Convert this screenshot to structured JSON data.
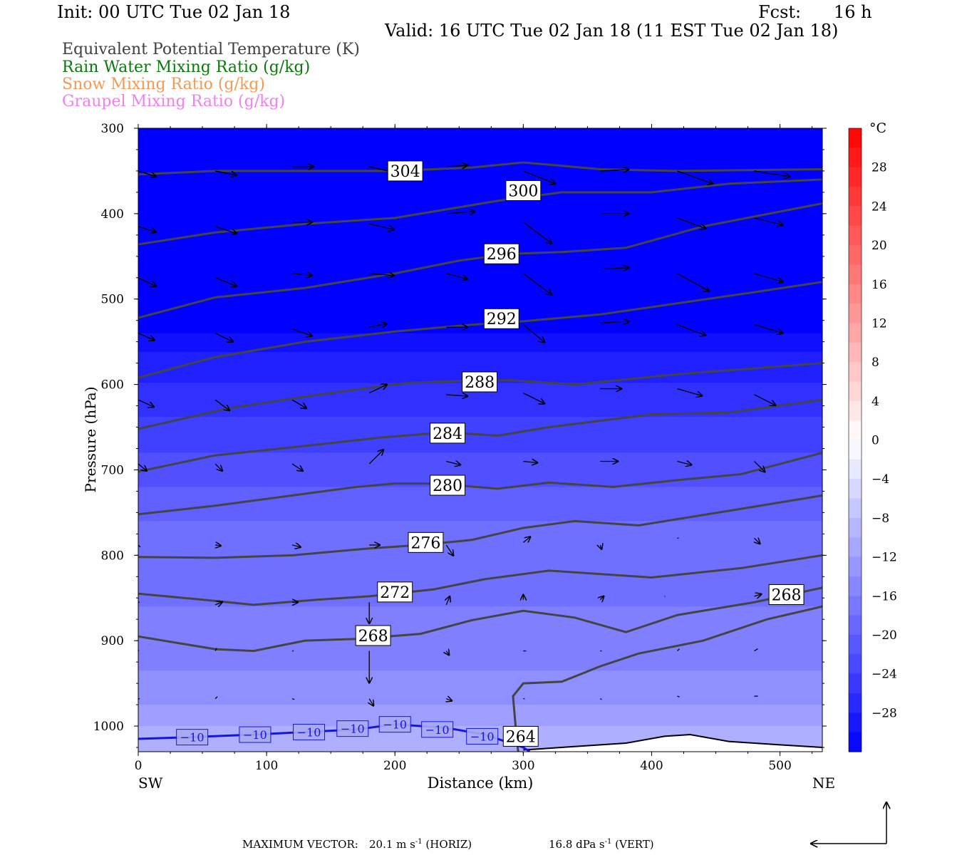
{
  "header": {
    "init": "Init: 00 UTC Tue 02 Jan 18",
    "fcst_label": "Fcst:",
    "fcst_value": "16 h",
    "valid": "Valid: 16 UTC Tue 02 Jan 18 (11 EST Tue 02 Jan 18)"
  },
  "fields": [
    {
      "label": "Equivalent Potential Temperature (K)",
      "color": "#404040"
    },
    {
      "label": "Rain Water Mixing Ratio (g/kg)",
      "color": "#0a7a0a"
    },
    {
      "label": "Snow Mixing Ratio (g/kg)",
      "color": "#f29a55"
    },
    {
      "label": "Graupel Mixing Ratio (g/kg)",
      "color": "#f080f0"
    }
  ],
  "footer": {
    "max_vector_label": "MAXIMUM VECTOR:",
    "horiz_value": "20.1 m s",
    "horiz_exp": "-1",
    "horiz_suffix": "(HORIZ)",
    "vert_value": "16.8 dPa s",
    "vert_exp": "-1",
    "vert_suffix": "(VERT)"
  },
  "chart_data": {
    "type": "cross-section",
    "title": "",
    "xlabel": "Distance (km)",
    "ylabel": "Pressure (hPa)",
    "x_ticks": [
      0,
      100,
      200,
      300,
      400,
      500
    ],
    "x_end_labels": {
      "left": "SW",
      "right": "NE"
    },
    "xlim": [
      0,
      533
    ],
    "y_ticks": [
      300,
      400,
      500,
      600,
      700,
      800,
      900,
      1000
    ],
    "ylim": [
      300,
      1030
    ],
    "colorbar": {
      "unit": "°C",
      "labels": [
        28,
        24,
        20,
        16,
        12,
        8,
        4,
        0,
        -4,
        -8,
        -12,
        -16,
        -20,
        -24,
        -28
      ],
      "range": [
        -32,
        32
      ],
      "step": 2
    },
    "theta_e_contours": [
      {
        "label": "304",
        "label_x": 208,
        "label_p": 350,
        "points": [
          [
            0,
            354
          ],
          [
            60,
            350
          ],
          [
            120,
            350
          ],
          [
            200,
            350
          ],
          [
            260,
            346
          ],
          [
            300,
            340
          ],
          [
            360,
            348
          ],
          [
            420,
            350
          ],
          [
            533,
            348
          ]
        ]
      },
      {
        "label": "300",
        "label_x": 300,
        "label_p": 373,
        "points": [
          [
            0,
            436
          ],
          [
            60,
            422
          ],
          [
            130,
            412
          ],
          [
            200,
            405
          ],
          [
            240,
            395
          ],
          [
            280,
            385
          ],
          [
            330,
            375
          ],
          [
            400,
            375
          ],
          [
            460,
            365
          ],
          [
            533,
            360
          ]
        ]
      },
      {
        "label": "296",
        "label_x": 283,
        "label_p": 447,
        "points": [
          [
            0,
            522
          ],
          [
            60,
            498
          ],
          [
            130,
            487
          ],
          [
            200,
            470
          ],
          [
            250,
            455
          ],
          [
            290,
            447
          ],
          [
            330,
            445
          ],
          [
            380,
            440
          ],
          [
            440,
            415
          ],
          [
            533,
            388
          ]
        ]
      },
      {
        "label": "292",
        "label_x": 283,
        "label_p": 523,
        "points": [
          [
            0,
            592
          ],
          [
            60,
            568
          ],
          [
            130,
            550
          ],
          [
            200,
            538
          ],
          [
            260,
            530
          ],
          [
            300,
            526
          ],
          [
            360,
            518
          ],
          [
            420,
            505
          ],
          [
            480,
            492
          ],
          [
            533,
            480
          ]
        ]
      },
      {
        "label": "288",
        "label_x": 266,
        "label_p": 597,
        "points": [
          [
            0,
            652
          ],
          [
            70,
            628
          ],
          [
            140,
            612
          ],
          [
            210,
            598
          ],
          [
            250,
            596
          ],
          [
            290,
            595
          ],
          [
            340,
            600
          ],
          [
            420,
            588
          ],
          [
            490,
            580
          ],
          [
            533,
            575
          ]
        ]
      },
      {
        "label": "284",
        "label_x": 241,
        "label_p": 657,
        "points": [
          [
            0,
            702
          ],
          [
            60,
            683
          ],
          [
            130,
            672
          ],
          [
            190,
            662
          ],
          [
            240,
            656
          ],
          [
            280,
            660
          ],
          [
            320,
            650
          ],
          [
            400,
            635
          ],
          [
            460,
            633
          ],
          [
            533,
            618
          ]
        ]
      },
      {
        "label": "280",
        "label_x": 241,
        "label_p": 718,
        "points": [
          [
            0,
            752
          ],
          [
            60,
            742
          ],
          [
            120,
            730
          ],
          [
            170,
            720
          ],
          [
            200,
            716
          ],
          [
            230,
            716
          ],
          [
            280,
            722
          ],
          [
            320,
            715
          ],
          [
            370,
            720
          ],
          [
            420,
            712
          ],
          [
            470,
            705
          ],
          [
            533,
            680
          ]
        ]
      },
      {
        "label": "276",
        "label_x": 224,
        "label_p": 785,
        "points": [
          [
            0,
            802
          ],
          [
            60,
            803
          ],
          [
            120,
            800
          ],
          [
            180,
            792
          ],
          [
            220,
            788
          ],
          [
            260,
            782
          ],
          [
            300,
            768
          ],
          [
            340,
            760
          ],
          [
            390,
            765
          ],
          [
            460,
            748
          ],
          [
            533,
            730
          ]
        ]
      },
      {
        "label": "272",
        "label_x": 200,
        "label_p": 843,
        "points": [
          [
            0,
            845
          ],
          [
            50,
            852
          ],
          [
            90,
            858
          ],
          [
            140,
            852
          ],
          [
            180,
            848
          ],
          [
            230,
            840
          ],
          [
            270,
            828
          ],
          [
            320,
            818
          ],
          [
            400,
            826
          ],
          [
            470,
            815
          ],
          [
            533,
            800
          ]
        ]
      },
      {
        "label": "268",
        "label_x": 183,
        "label_p": 894,
        "points": [
          [
            0,
            895
          ],
          [
            60,
            910
          ],
          [
            90,
            912
          ],
          [
            130,
            900
          ],
          [
            170,
            898
          ],
          [
            220,
            892
          ],
          [
            260,
            876
          ],
          [
            300,
            865
          ],
          [
            340,
            873
          ],
          [
            380,
            890
          ],
          [
            420,
            870
          ],
          [
            480,
            855
          ],
          [
            533,
            838
          ]
        ]
      },
      {
        "label": "264",
        "label_x": 298,
        "label_p": 1012,
        "points": [
          [
            296,
            1030
          ],
          [
            294,
            1000
          ],
          [
            292,
            965
          ],
          [
            300,
            950
          ],
          [
            330,
            948
          ],
          [
            360,
            930
          ],
          [
            390,
            915
          ],
          [
            440,
            900
          ],
          [
            490,
            875
          ],
          [
            533,
            860
          ]
        ]
      }
    ],
    "inline_labels": [
      {
        "label": "268",
        "x": 505,
        "p": 846
      }
    ],
    "temp_minus10_labels": [
      {
        "label": "-10",
        "x": 42,
        "p": 1013
      },
      {
        "label": "-10",
        "x": 91,
        "p": 1010
      },
      {
        "label": "-10",
        "x": 133,
        "p": 1007
      },
      {
        "label": "-10",
        "x": 167,
        "p": 1003
      },
      {
        "label": "-10",
        "x": 200,
        "p": 998
      },
      {
        "label": "-10",
        "x": 233,
        "p": 1004
      },
      {
        "label": "-10",
        "x": 268,
        "p": 1012
      }
    ],
    "minus10_line": [
      [
        0,
        1015
      ],
      [
        40,
        1013
      ],
      [
        90,
        1010
      ],
      [
        130,
        1007
      ],
      [
        170,
        1004
      ],
      [
        200,
        998
      ],
      [
        240,
        1002
      ],
      [
        270,
        1010
      ],
      [
        300,
        1025
      ],
      [
        305,
        1030
      ]
    ],
    "terrain_line": [
      [
        300,
        1028
      ],
      [
        340,
        1024
      ],
      [
        380,
        1020
      ],
      [
        410,
        1012
      ],
      [
        430,
        1010
      ],
      [
        460,
        1018
      ],
      [
        500,
        1022
      ],
      [
        533,
        1025
      ]
    ],
    "temperature_bands": [
      {
        "temp_c": -32,
        "top_p": 300,
        "bottom_p": 540
      },
      {
        "temp_c": -30,
        "top_p": 540,
        "bottom_p": 562
      },
      {
        "temp_c": -28,
        "top_p": 562,
        "bottom_p": 598
      },
      {
        "temp_c": -26,
        "top_p": 598,
        "bottom_p": 638
      },
      {
        "temp_c": -24,
        "top_p": 638,
        "bottom_p": 680
      },
      {
        "temp_c": -22,
        "top_p": 680,
        "bottom_p": 720
      },
      {
        "temp_c": -20,
        "top_p": 720,
        "bottom_p": 760
      },
      {
        "temp_c": -18,
        "top_p": 760,
        "bottom_p": 860
      },
      {
        "temp_c": -16,
        "top_p": 860,
        "bottom_p": 935
      },
      {
        "temp_c": -14,
        "top_p": 935,
        "bottom_p": 975
      },
      {
        "temp_c": -12,
        "top_p": 975,
        "bottom_p": 1000
      },
      {
        "temp_c": -10,
        "top_p": 1000,
        "bottom_p": 1030
      }
    ],
    "wind_vectors_note": "horizontal/vertical circulation vectors along section",
    "wind_vectors": [
      [
        0,
        350,
        25,
        -8
      ],
      [
        60,
        350,
        30,
        -6
      ],
      [
        120,
        345,
        30,
        0
      ],
      [
        180,
        345,
        35,
        -8
      ],
      [
        240,
        345,
        30,
        2
      ],
      [
        300,
        350,
        45,
        -18
      ],
      [
        360,
        350,
        40,
        2
      ],
      [
        420,
        350,
        50,
        -18
      ],
      [
        480,
        350,
        50,
        -8
      ],
      [
        0,
        415,
        25,
        -8
      ],
      [
        60,
        415,
        30,
        -10
      ],
      [
        120,
        410,
        28,
        0
      ],
      [
        180,
        412,
        35,
        -8
      ],
      [
        240,
        400,
        40,
        3
      ],
      [
        300,
        410,
        40,
        -30
      ],
      [
        360,
        400,
        40,
        0
      ],
      [
        420,
        405,
        40,
        -15
      ],
      [
        480,
        405,
        40,
        -10
      ],
      [
        0,
        475,
        25,
        -12
      ],
      [
        60,
        475,
        30,
        -12
      ],
      [
        120,
        470,
        28,
        -3
      ],
      [
        180,
        470,
        35,
        -3
      ],
      [
        240,
        470,
        30,
        -8
      ],
      [
        300,
        470,
        40,
        -30
      ],
      [
        360,
        465,
        40,
        2
      ],
      [
        420,
        470,
        45,
        -25
      ],
      [
        480,
        470,
        40,
        -12
      ],
      [
        0,
        540,
        23,
        -10
      ],
      [
        60,
        540,
        25,
        -12
      ],
      [
        120,
        535,
        28,
        -10
      ],
      [
        180,
        533,
        25,
        5
      ],
      [
        240,
        533,
        30,
        0
      ],
      [
        300,
        530,
        30,
        -25
      ],
      [
        360,
        528,
        40,
        2
      ],
      [
        420,
        530,
        40,
        -15
      ],
      [
        480,
        530,
        40,
        -12
      ],
      [
        0,
        618,
        22,
        -10
      ],
      [
        60,
        618,
        20,
        -15
      ],
      [
        120,
        618,
        20,
        -12
      ],
      [
        180,
        610,
        25,
        12
      ],
      [
        240,
        612,
        30,
        -2
      ],
      [
        300,
        610,
        30,
        -15
      ],
      [
        360,
        605,
        30,
        0
      ],
      [
        420,
        605,
        35,
        -10
      ],
      [
        480,
        612,
        30,
        -15
      ],
      [
        0,
        693,
        12,
        -10
      ],
      [
        60,
        693,
        10,
        -10
      ],
      [
        120,
        693,
        15,
        -10
      ],
      [
        180,
        693,
        20,
        20
      ],
      [
        240,
        690,
        20,
        -5
      ],
      [
        300,
        690,
        20,
        -2
      ],
      [
        360,
        690,
        25,
        0
      ],
      [
        420,
        690,
        20,
        -5
      ],
      [
        480,
        690,
        15,
        -15
      ],
      [
        0,
        788,
        3,
        -3
      ],
      [
        60,
        788,
        8,
        -1
      ],
      [
        120,
        788,
        12,
        -3
      ],
      [
        180,
        788,
        15,
        0
      ],
      [
        240,
        788,
        10,
        -15
      ],
      [
        300,
        785,
        10,
        8
      ],
      [
        360,
        788,
        2,
        -6
      ],
      [
        420,
        780,
        2,
        0
      ],
      [
        480,
        780,
        8,
        -8
      ],
      [
        0,
        855,
        2,
        0
      ],
      [
        60,
        858,
        10,
        4
      ],
      [
        120,
        855,
        8,
        0
      ],
      [
        180,
        855,
        0,
        -30
      ],
      [
        240,
        858,
        5,
        12
      ],
      [
        300,
        852,
        0,
        7
      ],
      [
        360,
        852,
        5,
        5
      ],
      [
        410,
        848,
        1,
        0
      ],
      [
        480,
        848,
        10,
        3
      ],
      [
        0,
        912,
        1,
        1
      ],
      [
        60,
        912,
        2,
        4
      ],
      [
        120,
        912,
        2,
        0
      ],
      [
        180,
        912,
        0,
        -45
      ],
      [
        240,
        912,
        4,
        -6
      ],
      [
        300,
        912,
        4,
        0
      ],
      [
        360,
        912,
        2,
        0
      ],
      [
        420,
        912,
        3,
        3
      ],
      [
        480,
        912,
        5,
        3
      ],
      [
        0,
        968,
        2,
        0
      ],
      [
        60,
        968,
        3,
        3
      ],
      [
        120,
        968,
        3,
        -1
      ],
      [
        180,
        968,
        6,
        -10
      ],
      [
        240,
        968,
        8,
        -3
      ],
      [
        300,
        968,
        2,
        0
      ],
      [
        360,
        968,
        2,
        -1
      ],
      [
        420,
        965,
        3,
        -1
      ],
      [
        480,
        965,
        5,
        0
      ]
    ]
  }
}
